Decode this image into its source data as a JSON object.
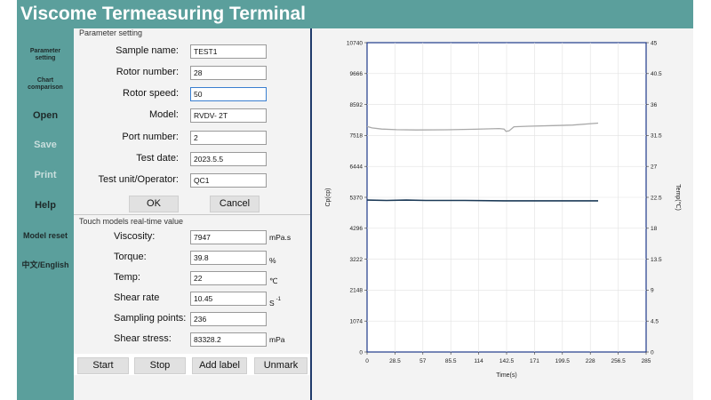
{
  "app": {
    "title": "Viscome Termeasuring Terminal"
  },
  "sidebar": {
    "items": [
      {
        "label": "Parameter\nsetting"
      },
      {
        "label": "Chart\ncomparison"
      },
      {
        "label": "Open"
      },
      {
        "label": "Save"
      },
      {
        "label": "Print"
      },
      {
        "label": "Help"
      },
      {
        "label": "Model reset"
      },
      {
        "label": "中文/English"
      }
    ]
  },
  "params": {
    "section_title": "Parameter setting",
    "fields": [
      {
        "label": "Sample name:",
        "value": "TEST1"
      },
      {
        "label": "Rotor number:",
        "value": "28"
      },
      {
        "label": "Rotor speed:",
        "value": "50"
      },
      {
        "label": "Model:",
        "value": "RVDV- 2T"
      },
      {
        "label": "Port number:",
        "value": "2"
      },
      {
        "label": "Test date:",
        "value": "2023.5.5"
      },
      {
        "label": "Test unit/Operator:",
        "value": "QC1"
      }
    ],
    "ok_label": "OK",
    "cancel_label": "Cancel"
  },
  "realtime": {
    "section_title": "Touch models real-time value",
    "fields": [
      {
        "label": "Viscosity:",
        "value": "7947",
        "unit": "mPa.s"
      },
      {
        "label": "Torque:",
        "value": "39.8",
        "unit": "%"
      },
      {
        "label": "Temp:",
        "value": "22",
        "unit": "℃"
      },
      {
        "label": "Shear rate",
        "value": "10.45",
        "unit": "S"
      },
      {
        "label": "Sampling points:",
        "value": "236",
        "unit": ""
      },
      {
        "label": "Shear stress:",
        "value": "83328.2",
        "unit": "mPa"
      }
    ],
    "shear_rate_exp": "-1"
  },
  "actions": {
    "start_label": "Start",
    "stop_label": "Stop",
    "add_label_label": "Add label",
    "unmark_label": "Unmark"
  },
  "chart_data": {
    "type": "line",
    "xlabel": "Time(s)",
    "ylabel": "Cp(cp)",
    "y2label": "Temp(℃)",
    "xlim": [
      0,
      285
    ],
    "ylim": [
      0,
      10740
    ],
    "y2lim": [
      0,
      45
    ],
    "x_ticks": [
      "0",
      "28.5",
      "57",
      "85.5",
      "114",
      "142.5",
      "171",
      "199.5",
      "228",
      "256.5",
      "285"
    ],
    "y_ticks": [
      "0",
      "1074",
      "2148",
      "3222",
      "4296",
      "5370",
      "6444",
      "7518",
      "8592",
      "9666",
      "10740"
    ],
    "y2_ticks": [
      "0",
      "4.5",
      "9",
      "13.5",
      "18",
      "22.5",
      "27",
      "31.5",
      "36",
      "40.5",
      "45"
    ],
    "series": [
      {
        "color": "#a9a9a9",
        "axis": "left",
        "points": [
          [
            0,
            7830
          ],
          [
            5,
            7780
          ],
          [
            15,
            7740
          ],
          [
            30,
            7720
          ],
          [
            50,
            7710
          ],
          [
            80,
            7715
          ],
          [
            110,
            7735
          ],
          [
            135,
            7760
          ],
          [
            140,
            7740
          ],
          [
            142,
            7660
          ],
          [
            145,
            7680
          ],
          [
            150,
            7820
          ],
          [
            165,
            7840
          ],
          [
            190,
            7860
          ],
          [
            210,
            7880
          ],
          [
            236,
            7947
          ]
        ]
      },
      {
        "color": "#1c3a57",
        "axis": "right",
        "points": [
          [
            0,
            22.1
          ],
          [
            20,
            22.05
          ],
          [
            40,
            22.1
          ],
          [
            60,
            22.05
          ],
          [
            100,
            22.05
          ],
          [
            140,
            22.0
          ],
          [
            170,
            22.0
          ],
          [
            200,
            22.0
          ],
          [
            236,
            22.0
          ]
        ]
      }
    ],
    "grid": true
  }
}
